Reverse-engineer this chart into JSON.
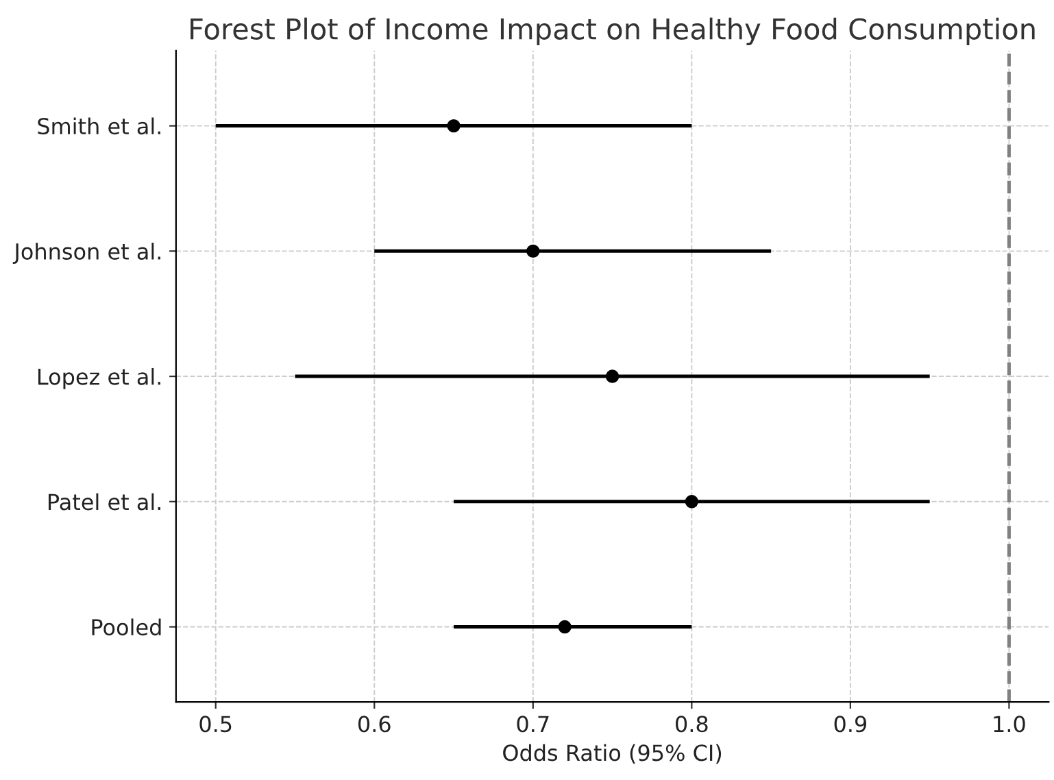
{
  "chart_data": {
    "type": "scatter",
    "orientation": "horizontal",
    "title": "Forest Plot of Income Impact on Healthy Food Consumption",
    "xlabel": "Odds Ratio (95% CI)",
    "categories": [
      "Smith et al.",
      "Johnson et al.",
      "Lopez et al.",
      "Patel et al.",
      "Pooled"
    ],
    "values": [
      0.65,
      0.7,
      0.75,
      0.8,
      0.72
    ],
    "errors": [
      [
        0.5,
        0.8
      ],
      [
        0.6,
        0.85
      ],
      [
        0.55,
        0.95
      ],
      [
        0.65,
        0.95
      ],
      [
        0.65,
        0.8
      ]
    ],
    "color": "#000000",
    "marker": "circle",
    "xlim": [
      0.475,
      1.025
    ],
    "xticks": [
      0.5,
      0.6,
      0.7,
      0.8,
      0.9,
      {
        "value": 1,
        "label": "1.0"
      }
    ],
    "ref_lines": [
      {
        "axis": "x",
        "value": 1,
        "color": "#808080",
        "line_style": "dashed"
      }
    ],
    "grid": true
  }
}
